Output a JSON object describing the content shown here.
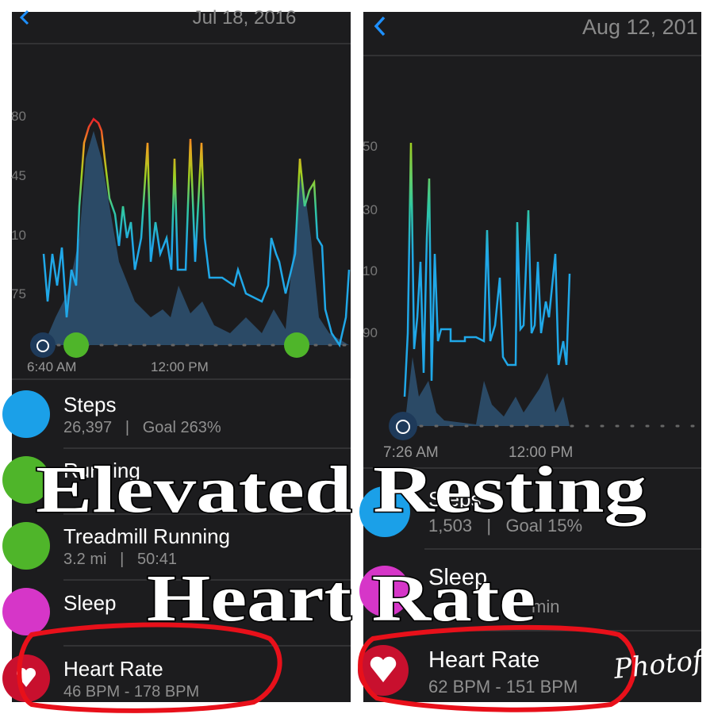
{
  "panels": [
    {
      "date": "Jul 18, 2016",
      "y_labels": [
        "80",
        "45",
        "10",
        "75"
      ],
      "x_labels": [
        "6:40 AM",
        "12:00 PM"
      ],
      "items": [
        {
          "title": "Steps",
          "detail": "26,397   |   Goal 263%"
        },
        {
          "title": "Running"
        },
        {
          "title": "Treadmill Running",
          "detail": "3.2 mi   |   50:41"
        },
        {
          "title": "Sleep"
        },
        {
          "title": "Heart Rate",
          "detail": "46 BPM - 178 BPM"
        }
      ]
    },
    {
      "date": "Aug 12, 201",
      "y_labels": [
        "50",
        "30",
        "10",
        "90"
      ],
      "x_labels": [
        "7:26 AM",
        "12:00 PM"
      ],
      "items": [
        {
          "title": "Steps",
          "detail": "1,503   |   Goal 15%"
        },
        {
          "title": "Sleep",
          "detail": "min"
        },
        {
          "title": "Heart Rate",
          "detail": "62 BPM - 151 BPM"
        }
      ]
    }
  ],
  "overlay": {
    "line1": "Elevated Resting",
    "line2": "Heart Rate"
  },
  "watermark": "Photofy"
}
